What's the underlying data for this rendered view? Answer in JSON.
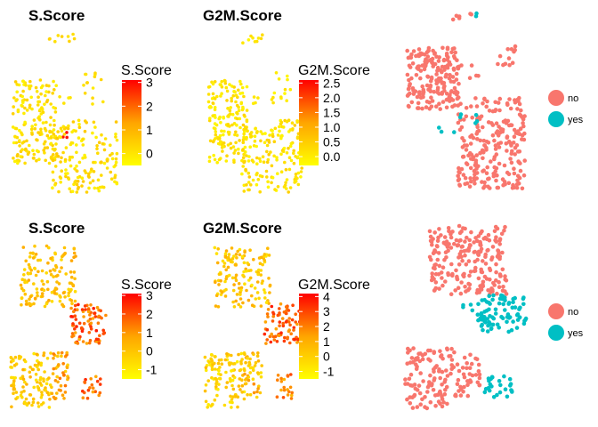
{
  "chart_data": [
    {
      "type": "scatter",
      "title": "S.Score",
      "legend_title": "S.Score",
      "colorbar": {
        "low": "#FFFF00",
        "mid": "#FFA500",
        "high": "#FF0000",
        "min": -0.5,
        "max": 3.1,
        "ticks": [
          "3",
          "2",
          "1",
          "0"
        ],
        "tick_values": [
          3,
          2,
          1,
          0
        ]
      },
      "clusters": [
        {
          "x": [
            0.34,
            0.62
          ],
          "y": [
            0.93,
            0.99
          ],
          "n": 9,
          "value_range": [
            0.0,
            0.5
          ]
        },
        {
          "x": [
            0.02,
            0.42
          ],
          "y": [
            0.18,
            0.7
          ],
          "n": 170,
          "value_range": [
            -0.3,
            0.5
          ]
        },
        {
          "x": [
            0.44,
            0.55
          ],
          "y": [
            0.55,
            0.6
          ],
          "n": 4,
          "value_range": [
            -0.2,
            0.3
          ]
        },
        {
          "x": [
            0.66,
            0.86
          ],
          "y": [
            0.55,
            0.75
          ],
          "n": 14,
          "value_range": [
            -0.2,
            0.4
          ]
        },
        {
          "x": [
            0.48,
            0.55
          ],
          "y": [
            0.34,
            0.4
          ],
          "n": 3,
          "value_range": [
            2.6,
            3.1
          ]
        },
        {
          "x": [
            0.36,
            0.98
          ],
          "y": [
            0.0,
            0.45
          ],
          "n": 160,
          "value_range": [
            -0.3,
            0.6
          ]
        }
      ],
      "legend_position": "right"
    },
    {
      "type": "scatter",
      "title": "G2M.Score",
      "legend_title": "G2M.Score",
      "colorbar": {
        "low": "#FFFF00",
        "mid": "#FFA500",
        "high": "#FF0000",
        "min": -0.3,
        "max": 2.6,
        "ticks": [
          "2.5",
          "2.0",
          "1.5",
          "1.0",
          "0.5",
          "0.0"
        ],
        "tick_values": [
          2.5,
          2.0,
          1.5,
          1.0,
          0.5,
          0.0
        ]
      },
      "clusters": [
        {
          "x": [
            0.34,
            0.62
          ],
          "y": [
            0.93,
            0.99
          ],
          "n": 9,
          "value_range": [
            -0.2,
            0.3
          ]
        },
        {
          "x": [
            0.02,
            0.42
          ],
          "y": [
            0.18,
            0.7
          ],
          "n": 170,
          "value_range": [
            -0.2,
            0.4
          ]
        },
        {
          "x": [
            0.44,
            0.55
          ],
          "y": [
            0.55,
            0.6
          ],
          "n": 4,
          "value_range": [
            -0.2,
            0.2
          ]
        },
        {
          "x": [
            0.66,
            0.86
          ],
          "y": [
            0.55,
            0.75
          ],
          "n": 14,
          "value_range": [
            -0.2,
            0.3
          ]
        },
        {
          "x": [
            0.48,
            0.55
          ],
          "y": [
            0.34,
            0.4
          ],
          "n": 3,
          "value_range": [
            -0.2,
            0.2
          ]
        },
        {
          "x": [
            0.36,
            0.98
          ],
          "y": [
            0.0,
            0.45
          ],
          "n": 160,
          "value_range": [
            -0.2,
            0.5
          ]
        }
      ],
      "legend_position": "right"
    },
    {
      "type": "scatter",
      "title": "",
      "legend": [
        {
          "label": "no",
          "color": "#F8766D"
        },
        {
          "label": "yes",
          "color": "#00BFC4"
        }
      ],
      "clusters": [
        {
          "x": [
            0.4,
            0.58
          ],
          "y": [
            0.95,
            1.0
          ],
          "n": 6,
          "group": "no"
        },
        {
          "x": [
            0.52,
            0.6
          ],
          "y": [
            0.96,
            1.0
          ],
          "n": 2,
          "group": "yes"
        },
        {
          "x": [
            0.02,
            0.45
          ],
          "y": [
            0.45,
            0.8
          ],
          "n": 190,
          "group": "no"
        },
        {
          "x": [
            0.74,
            0.92
          ],
          "y": [
            0.7,
            0.84
          ],
          "n": 12,
          "group": "no"
        },
        {
          "x": [
            0.46,
            0.64
          ],
          "y": [
            0.62,
            0.7
          ],
          "n": 5,
          "group": "no"
        },
        {
          "x": [
            0.46,
            0.62
          ],
          "y": [
            0.35,
            0.45
          ],
          "n": 5,
          "group": "yes"
        },
        {
          "x": [
            0.28,
            0.44
          ],
          "y": [
            0.28,
            0.38
          ],
          "n": 3,
          "group": "yes"
        },
        {
          "x": [
            0.44,
            1.0
          ],
          "y": [
            0.0,
            0.52
          ],
          "n": 230,
          "group": "no"
        }
      ],
      "legend_position": "right"
    },
    {
      "type": "scatter",
      "title": "S.Score",
      "legend_title": "S.Score",
      "colorbar": {
        "low": "#FFFF00",
        "mid": "#FFA500",
        "high": "#FF0000",
        "min": -1.5,
        "max": 3.1,
        "ticks": [
          "3",
          "2",
          "1",
          "0",
          "-1"
        ],
        "tick_values": [
          3,
          2,
          1,
          0,
          -1
        ]
      },
      "clusters": [
        {
          "x": [
            0.1,
            0.66
          ],
          "y": [
            0.6,
            0.97
          ],
          "n": 140,
          "value_range": [
            -0.6,
            0.8
          ]
        },
        {
          "x": [
            0.6,
            0.96
          ],
          "y": [
            0.38,
            0.62
          ],
          "n": 80,
          "value_range": [
            0.6,
            2.8
          ]
        },
        {
          "x": [
            0.0,
            0.4
          ],
          "y": [
            0.0,
            0.33
          ],
          "n": 110,
          "value_range": [
            -0.9,
            0.6
          ]
        },
        {
          "x": [
            0.4,
            0.58
          ],
          "y": [
            0.05,
            0.33
          ],
          "n": 45,
          "value_range": [
            -0.4,
            1.6
          ]
        },
        {
          "x": [
            0.72,
            0.9
          ],
          "y": [
            0.05,
            0.2
          ],
          "n": 20,
          "value_range": [
            0.6,
            2.6
          ]
        }
      ],
      "legend_position": "right"
    },
    {
      "type": "scatter",
      "title": "G2M.Score",
      "legend_title": "G2M.Score",
      "colorbar": {
        "low": "#FFFF00",
        "mid": "#FFA500",
        "high": "#FF0000",
        "min": -1.5,
        "max": 4.2,
        "ticks": [
          "4",
          "3",
          "2",
          "1",
          "0",
          "-1"
        ],
        "tick_values": [
          4,
          3,
          2,
          1,
          0,
          -1
        ]
      },
      "clusters": [
        {
          "x": [
            0.1,
            0.66
          ],
          "y": [
            0.6,
            0.97
          ],
          "n": 140,
          "value_range": [
            -0.8,
            1.2
          ]
        },
        {
          "x": [
            0.6,
            0.96
          ],
          "y": [
            0.38,
            0.62
          ],
          "n": 80,
          "value_range": [
            1.2,
            3.8
          ]
        },
        {
          "x": [
            0.0,
            0.4
          ],
          "y": [
            0.0,
            0.33
          ],
          "n": 110,
          "value_range": [
            -1.0,
            0.8
          ]
        },
        {
          "x": [
            0.4,
            0.58
          ],
          "y": [
            0.05,
            0.33
          ],
          "n": 45,
          "value_range": [
            -0.6,
            1.8
          ]
        },
        {
          "x": [
            0.72,
            0.9
          ],
          "y": [
            0.05,
            0.2
          ],
          "n": 20,
          "value_range": [
            0.5,
            3.0
          ]
        }
      ],
      "legend_position": "right"
    },
    {
      "type": "scatter",
      "title": "",
      "legend": [
        {
          "label": "no",
          "color": "#F8766D"
        },
        {
          "label": "yes",
          "color": "#00BFC4"
        }
      ],
      "clusters": [
        {
          "x": [
            0.2,
            0.82
          ],
          "y": [
            0.62,
            1.0
          ],
          "n": 220,
          "group": "no"
        },
        {
          "x": [
            0.6,
            0.98
          ],
          "y": [
            0.42,
            0.62
          ],
          "n": 80,
          "group": "yes"
        },
        {
          "x": [
            0.4,
            0.62
          ],
          "y": [
            0.48,
            0.58
          ],
          "n": 10,
          "group": "yes"
        },
        {
          "x": [
            0.0,
            0.4
          ],
          "y": [
            0.0,
            0.33
          ],
          "n": 110,
          "group": "no"
        },
        {
          "x": [
            0.4,
            0.6
          ],
          "y": [
            0.05,
            0.33
          ],
          "n": 40,
          "group": "no"
        },
        {
          "x": [
            0.64,
            0.86
          ],
          "y": [
            0.06,
            0.18
          ],
          "n": 25,
          "group": "yes"
        }
      ],
      "legend_position": "right"
    }
  ]
}
